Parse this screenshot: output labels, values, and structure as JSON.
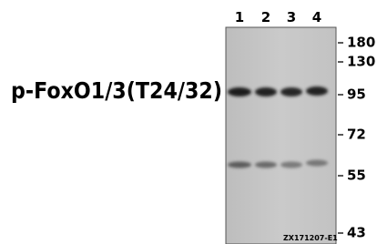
{
  "lanes": [
    "1",
    "2",
    "3",
    "4"
  ],
  "markers": [
    180,
    130,
    95,
    72,
    55,
    43
  ],
  "protein_label": "p-FoxO1/3(T24/32)",
  "catalog": "ZX171207-E1"
}
